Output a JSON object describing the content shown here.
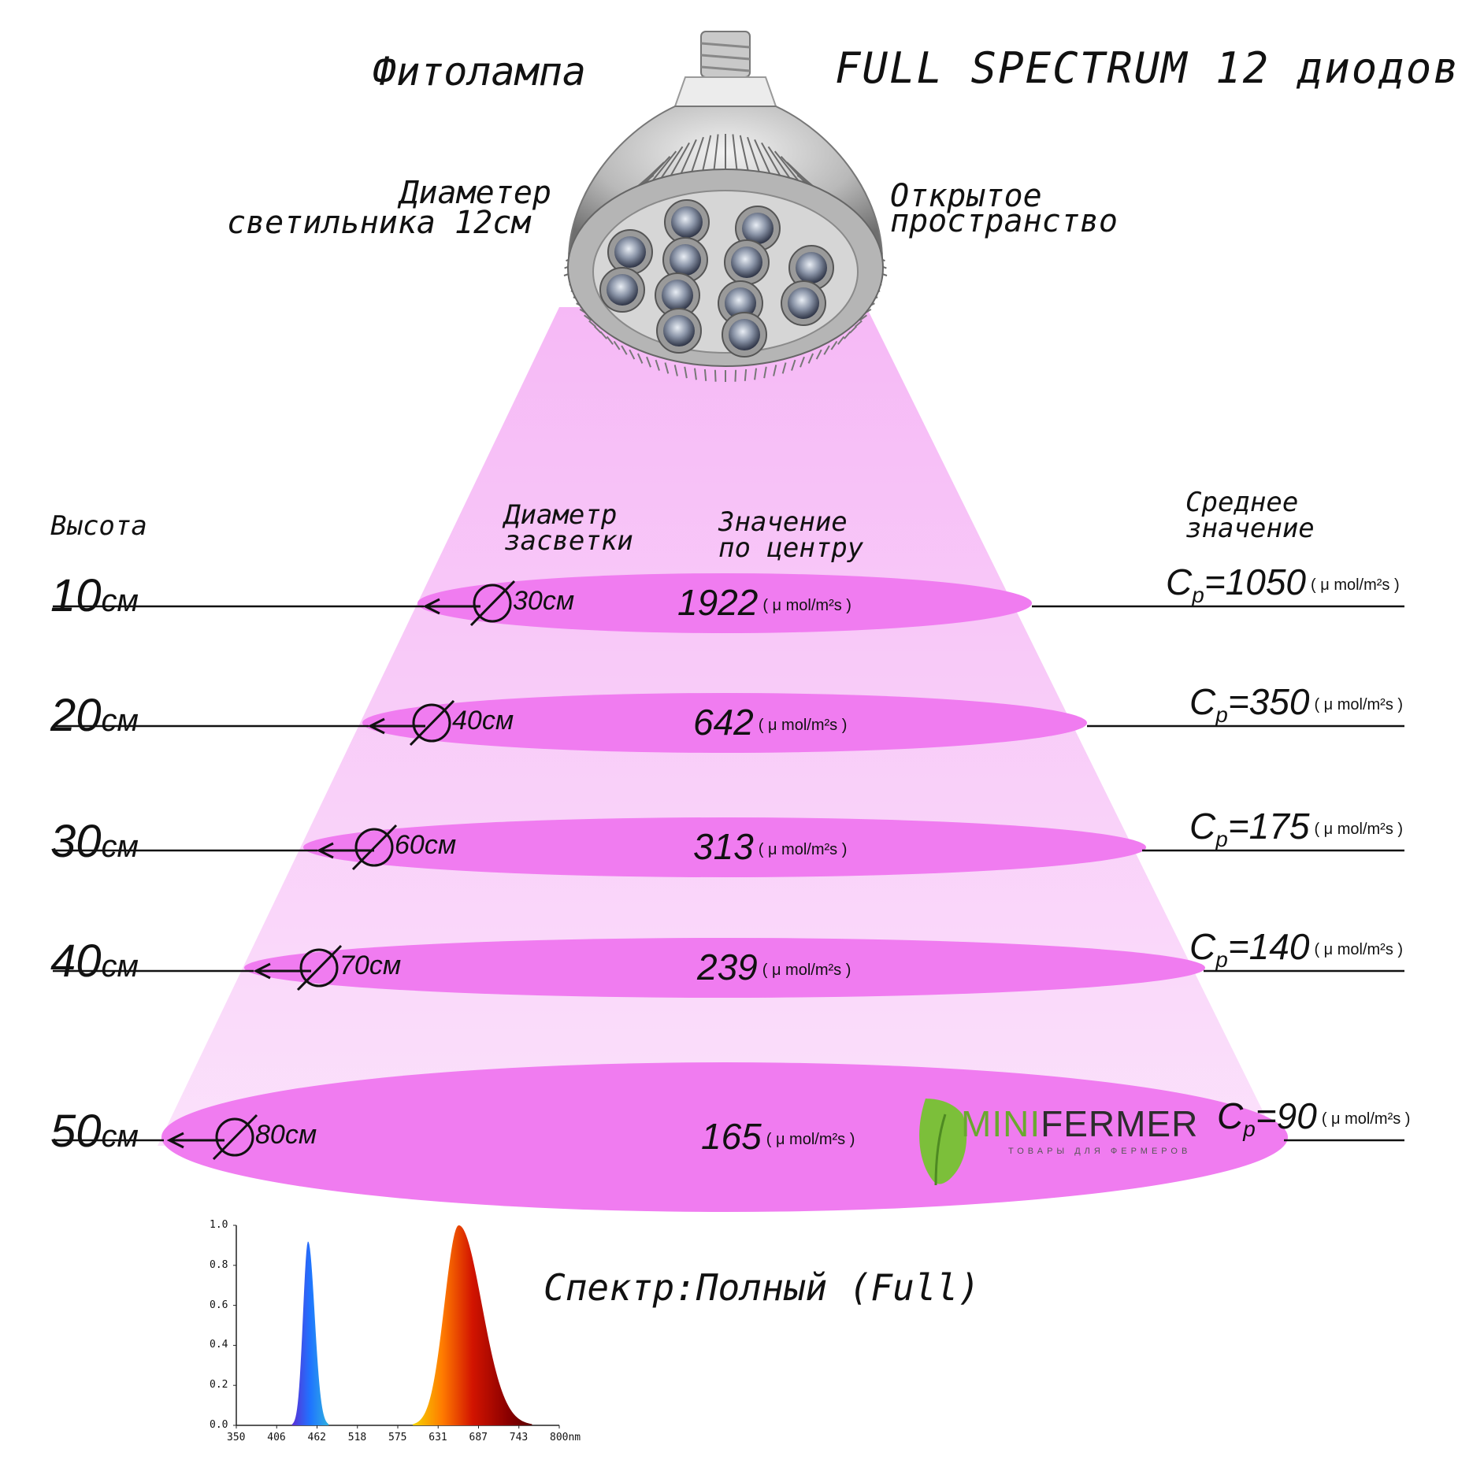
{
  "title": {
    "left": "Фитолампа",
    "right": "FULL SPECTRUM 12 диодов"
  },
  "lamp_notes": {
    "diameter_line1": "Диаметер",
    "diameter_line2": "светильника 12см",
    "open_line1": "Открытое",
    "open_line2": "пространство"
  },
  "headers": {
    "height": "Высота",
    "diameter_line1": "Диаметр",
    "diameter_line2": "засветки",
    "center_line1": "Значение",
    "center_line2": "по центру",
    "average_line1": "Среднее",
    "average_line2": "значение"
  },
  "unit": "( μ mol/m²s )",
  "avg_prefix": "C",
  "avg_subscript": "p",
  "rows": [
    {
      "height_num": "10",
      "height_unit": "см",
      "diameter": "30см",
      "center": "1922",
      "average": "=1050"
    },
    {
      "height_num": "20",
      "height_unit": "см",
      "diameter": "40см",
      "center": "642",
      "average": "=350"
    },
    {
      "height_num": "30",
      "height_unit": "см",
      "diameter": "60см",
      "center": "313",
      "average": "=175"
    },
    {
      "height_num": "40",
      "height_unit": "см",
      "diameter": "70см",
      "center": "239",
      "average": "=140"
    },
    {
      "height_num": "50",
      "height_unit": "см",
      "diameter": "80см",
      "center": "165",
      "average": "=90"
    }
  ],
  "brand": {
    "mini": "MINI",
    "rest": "FERMER",
    "tagline": "ТОВАРЫ ДЛЯ ФЕРМЕРОВ"
  },
  "spectrum_label": "Спектр:Полный (Full)",
  "colors": {
    "beam": "#f7c8f7",
    "ellipse": "#f07cf0",
    "leaf": "#6aa82f"
  },
  "spectrum_chart": {
    "type": "line",
    "xlabel": "",
    "ylabel": "",
    "x_ticks": [
      "350",
      "406",
      "462",
      "518",
      "575",
      "631",
      "687",
      "743",
      "800nm"
    ],
    "y_ticks": [
      "0.0",
      "0.2",
      "0.4",
      "0.6",
      "0.8",
      "1.0"
    ],
    "xlim": [
      350,
      800
    ],
    "ylim": [
      0,
      1
    ],
    "peaks": [
      {
        "center_nm": 450,
        "relative_intensity": 0.92
      },
      {
        "center_nm": 660,
        "relative_intensity": 1.0
      }
    ]
  }
}
